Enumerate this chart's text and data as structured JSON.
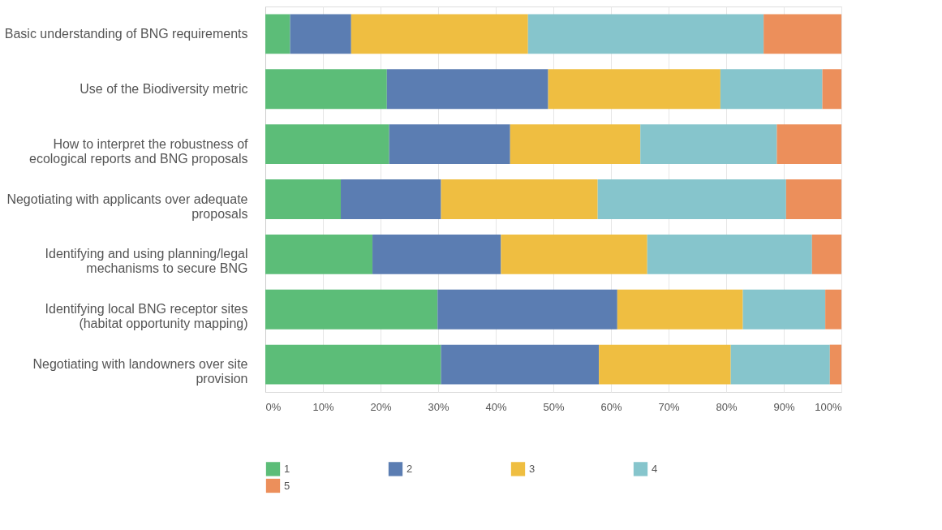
{
  "chart_data": {
    "type": "bar",
    "orientation": "horizontal",
    "stacked": true,
    "categories": [
      "Basic understanding of BNG requirements",
      "Use of the Biodiversity metric",
      "How to interpret the robustness of ecological reports and BNG proposals",
      "Negotiating with applicants over adequate proposals",
      "Identifying and using planning/legal mechanisms to secure BNG",
      "Identifying local BNG receptor sites (habitat opportunity mapping)",
      "Negotiating with landowners over site provision"
    ],
    "series": [
      {
        "name": "1",
        "color": "#5cbd78",
        "values": [
          4.3,
          21.1,
          21.5,
          13.1,
          18.6,
          29.9,
          30.5
        ]
      },
      {
        "name": "2",
        "color": "#5b7db2",
        "values": [
          10.6,
          28.0,
          21.0,
          17.4,
          22.3,
          31.2,
          27.4
        ]
      },
      {
        "name": "3",
        "color": "#efbe41",
        "values": [
          30.7,
          29.9,
          22.6,
          27.2,
          25.4,
          21.8,
          22.9
        ]
      },
      {
        "name": "4",
        "color": "#86c5cc",
        "values": [
          40.9,
          17.7,
          23.7,
          32.7,
          28.6,
          14.3,
          17.2
        ]
      },
      {
        "name": "5",
        "color": "#ec8f5b",
        "values": [
          13.5,
          3.3,
          11.2,
          9.6,
          5.1,
          2.8,
          2.0
        ]
      }
    ],
    "xlim": [
      0,
      100
    ],
    "xticks": [
      {
        "value": 0,
        "label": "0%"
      },
      {
        "value": 10,
        "label": "10%"
      },
      {
        "value": 20,
        "label": "20%"
      },
      {
        "value": 30,
        "label": "30%"
      },
      {
        "value": 40,
        "label": "40%"
      },
      {
        "value": 50,
        "label": "50%"
      },
      {
        "value": 60,
        "label": "60%"
      },
      {
        "value": 70,
        "label": "70%"
      },
      {
        "value": 80,
        "label": "80%"
      },
      {
        "value": 90,
        "label": "90%"
      },
      {
        "value": 100,
        "label": "100%"
      }
    ],
    "grid": "x",
    "legend": "bottom"
  }
}
